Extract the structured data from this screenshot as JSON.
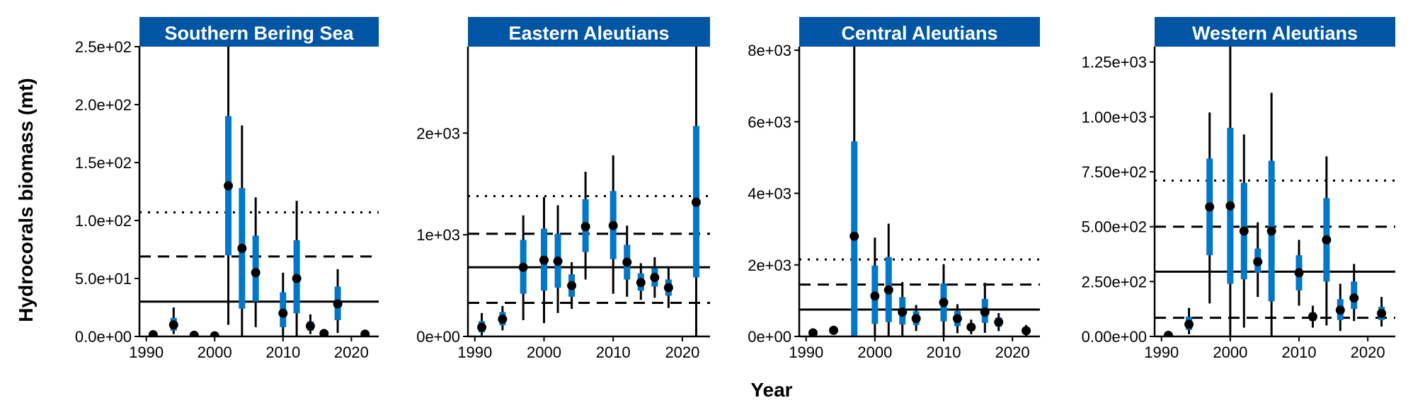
{
  "figure": {
    "ylabel": "Hydrocorals biomass (mt)",
    "xlabel": "Year"
  },
  "colors": {
    "strip": "#0055A4",
    "inner_interval": "#0077C8",
    "outer_interval": "#000000",
    "point": "#000000"
  },
  "chart_data": [
    {
      "type": "scatter",
      "title": "Southern Bering Sea",
      "xlim": [
        1989,
        2024
      ],
      "ylim": [
        0,
        250
      ],
      "xticks": [
        1990,
        2000,
        2010,
        2020
      ],
      "yticks": [
        0,
        50,
        100,
        150,
        200,
        250
      ],
      "yticklabels": [
        "0.0e+00",
        "5.0e+01",
        "1.0e+02",
        "1.5e+02",
        "2.0e+02",
        "2.5e+02"
      ],
      "reference_lines": {
        "solid": 30,
        "dashed": 69,
        "dotted": 107
      },
      "points": [
        {
          "x": 1991,
          "y": 1.5,
          "lo_inner": 1.5,
          "hi_inner": 1.5,
          "lo_outer": 1.5,
          "hi_outer": 1.5
        },
        {
          "x": 1994,
          "y": 10,
          "lo_inner": 5,
          "hi_inner": 16,
          "lo_outer": 2,
          "hi_outer": 25
        },
        {
          "x": 1997,
          "y": 1,
          "lo_inner": 1,
          "hi_inner": 1,
          "lo_outer": 1,
          "hi_outer": 1
        },
        {
          "x": 2000,
          "y": 0.5,
          "lo_inner": 0.5,
          "hi_inner": 0.5,
          "lo_outer": 0.5,
          "hi_outer": 0.5
        },
        {
          "x": 2002,
          "y": 130,
          "lo_inner": 70,
          "hi_inner": 190,
          "lo_outer": 10,
          "hi_outer": 250
        },
        {
          "x": 2004,
          "y": 76,
          "lo_inner": 24,
          "hi_inner": 128,
          "lo_outer": 0,
          "hi_outer": 182
        },
        {
          "x": 2006,
          "y": 55,
          "lo_inner": 30,
          "hi_inner": 87,
          "lo_outer": 8,
          "hi_outer": 120
        },
        {
          "x": 2010,
          "y": 20,
          "lo_inner": 8,
          "hi_inner": 38,
          "lo_outer": 0,
          "hi_outer": 55
        },
        {
          "x": 2012,
          "y": 50,
          "lo_inner": 20,
          "hi_inner": 83,
          "lo_outer": 0,
          "hi_outer": 117
        },
        {
          "x": 2014,
          "y": 9,
          "lo_inner": 5,
          "hi_inner": 13,
          "lo_outer": 2,
          "hi_outer": 19
        },
        {
          "x": 2016,
          "y": 2.5,
          "lo_inner": 1,
          "hi_inner": 4,
          "lo_outer": 0,
          "hi_outer": 5
        },
        {
          "x": 2018,
          "y": 28,
          "lo_inner": 14,
          "hi_inner": 43,
          "lo_outer": 3,
          "hi_outer": 58
        },
        {
          "x": 2022,
          "y": 2,
          "lo_inner": 2,
          "hi_inner": 2,
          "lo_outer": 2,
          "hi_outer": 2
        }
      ]
    },
    {
      "type": "scatter",
      "title": "Eastern Aleutians",
      "xlim": [
        1989,
        2024
      ],
      "ylim": [
        0,
        2850
      ],
      "xticks": [
        1990,
        2000,
        2010,
        2020
      ],
      "yticks": [
        0,
        1000,
        2000
      ],
      "yticklabels": [
        "0e+00",
        "1e+03",
        "2e+03"
      ],
      "reference_lines": {
        "solid": 680,
        "dashed": 1010,
        "dotted": 1380,
        "dashed_low": 330
      },
      "points": [
        {
          "x": 1991,
          "y": 90,
          "lo_inner": 40,
          "hi_inner": 150,
          "lo_outer": 10,
          "hi_outer": 230
        },
        {
          "x": 1994,
          "y": 170,
          "lo_inner": 110,
          "hi_inner": 240,
          "lo_outer": 60,
          "hi_outer": 300
        },
        {
          "x": 1997,
          "y": 680,
          "lo_inner": 420,
          "hi_inner": 950,
          "lo_outer": 160,
          "hi_outer": 1190
        },
        {
          "x": 2000,
          "y": 750,
          "lo_inner": 450,
          "hi_inner": 1060,
          "lo_outer": 130,
          "hi_outer": 1370
        },
        {
          "x": 2002,
          "y": 740,
          "lo_inner": 480,
          "hi_inner": 1010,
          "lo_outer": 230,
          "hi_outer": 1290
        },
        {
          "x": 2004,
          "y": 500,
          "lo_inner": 390,
          "hi_inner": 610,
          "lo_outer": 270,
          "hi_outer": 730
        },
        {
          "x": 2006,
          "y": 1080,
          "lo_inner": 830,
          "hi_inner": 1350,
          "lo_outer": 560,
          "hi_outer": 1620
        },
        {
          "x": 2010,
          "y": 1090,
          "lo_inner": 760,
          "hi_inner": 1430,
          "lo_outer": 420,
          "hi_outer": 1780
        },
        {
          "x": 2012,
          "y": 730,
          "lo_inner": 560,
          "hi_inner": 900,
          "lo_outer": 390,
          "hi_outer": 1090
        },
        {
          "x": 2014,
          "y": 530,
          "lo_inner": 450,
          "hi_inner": 620,
          "lo_outer": 360,
          "hi_outer": 720
        },
        {
          "x": 2016,
          "y": 580,
          "lo_inner": 490,
          "hi_inner": 670,
          "lo_outer": 380,
          "hi_outer": 780
        },
        {
          "x": 2018,
          "y": 480,
          "lo_inner": 400,
          "hi_inner": 560,
          "lo_outer": 280,
          "hi_outer": 680
        },
        {
          "x": 2022,
          "y": 1320,
          "lo_inner": 580,
          "hi_inner": 2070,
          "lo_outer": 0,
          "hi_outer": 2850
        }
      ]
    },
    {
      "type": "scatter",
      "title": "Central Aleutians",
      "xlim": [
        1989,
        2024
      ],
      "ylim": [
        0,
        8100
      ],
      "xticks": [
        1990,
        2000,
        2010,
        2020
      ],
      "yticks": [
        0,
        2000,
        4000,
        6000,
        8000
      ],
      "yticklabels": [
        "0e+00",
        "2e+03",
        "4e+03",
        "6e+03",
        "8e+03"
      ],
      "reference_lines": {
        "solid": 750,
        "dashed": 1450,
        "dotted": 2150
      },
      "points": [
        {
          "x": 1991,
          "y": 100,
          "lo_inner": 60,
          "hi_inner": 140,
          "lo_outer": 30,
          "hi_outer": 180
        },
        {
          "x": 1994,
          "y": 170,
          "lo_inner": 120,
          "hi_inner": 220,
          "lo_outer": 80,
          "hi_outer": 270
        },
        {
          "x": 1997,
          "y": 2800,
          "lo_inner": 0,
          "hi_inner": 5450,
          "lo_outer": 0,
          "hi_outer": 8100
        },
        {
          "x": 2000,
          "y": 1130,
          "lo_inner": 350,
          "hi_inner": 1980,
          "lo_outer": 0,
          "hi_outer": 2760
        },
        {
          "x": 2002,
          "y": 1300,
          "lo_inner": 400,
          "hi_inner": 2220,
          "lo_outer": 0,
          "hi_outer": 3150
        },
        {
          "x": 2004,
          "y": 680,
          "lo_inner": 330,
          "hi_inner": 1100,
          "lo_outer": 0,
          "hi_outer": 1520
        },
        {
          "x": 2006,
          "y": 500,
          "lo_inner": 320,
          "hi_inner": 700,
          "lo_outer": 150,
          "hi_outer": 880
        },
        {
          "x": 2010,
          "y": 950,
          "lo_inner": 420,
          "hi_inner": 1480,
          "lo_outer": 0,
          "hi_outer": 2020
        },
        {
          "x": 2012,
          "y": 500,
          "lo_inner": 290,
          "hi_inner": 710,
          "lo_outer": 90,
          "hi_outer": 900
        },
        {
          "x": 2014,
          "y": 260,
          "lo_inner": 160,
          "hi_inner": 360,
          "lo_outer": 60,
          "hi_outer": 470
        },
        {
          "x": 2016,
          "y": 680,
          "lo_inner": 380,
          "hi_inner": 1050,
          "lo_outer": 100,
          "hi_outer": 1500
        },
        {
          "x": 2018,
          "y": 400,
          "lo_inner": 270,
          "hi_inner": 530,
          "lo_outer": 150,
          "hi_outer": 650
        },
        {
          "x": 2022,
          "y": 160,
          "lo_inner": 90,
          "hi_inner": 240,
          "lo_outer": 20,
          "hi_outer": 320
        }
      ]
    },
    {
      "type": "scatter",
      "title": "Western Aleutians",
      "xlim": [
        1989,
        2024
      ],
      "ylim": [
        0,
        1320
      ],
      "xticks": [
        1990,
        2000,
        2010,
        2020
      ],
      "yticks": [
        0,
        250,
        500,
        750,
        1000,
        1250
      ],
      "yticklabels": [
        "0.00e+00",
        "2.50e+02",
        "5.00e+02",
        "7.50e+02",
        "1.00e+03",
        "1.25e+03"
      ],
      "reference_lines": {
        "solid": 295,
        "dashed": 500,
        "dotted": 710,
        "dashed_low": 85
      },
      "points": [
        {
          "x": 1991,
          "y": 5,
          "lo_inner": 5,
          "hi_inner": 5,
          "lo_outer": 5,
          "hi_outer": 5
        },
        {
          "x": 1994,
          "y": 55,
          "lo_inner": 30,
          "hi_inner": 90,
          "lo_outer": 10,
          "hi_outer": 130
        },
        {
          "x": 1997,
          "y": 590,
          "lo_inner": 370,
          "hi_inner": 810,
          "lo_outer": 150,
          "hi_outer": 1020
        },
        {
          "x": 2000,
          "y": 595,
          "lo_inner": 240,
          "hi_inner": 950,
          "lo_outer": 0,
          "hi_outer": 1320
        },
        {
          "x": 2002,
          "y": 480,
          "lo_inner": 260,
          "hi_inner": 700,
          "lo_outer": 40,
          "hi_outer": 920
        },
        {
          "x": 2004,
          "y": 340,
          "lo_inner": 290,
          "hi_inner": 400,
          "lo_outer": 180,
          "hi_outer": 520
        },
        {
          "x": 2006,
          "y": 480,
          "lo_inner": 160,
          "hi_inner": 800,
          "lo_outer": 0,
          "hi_outer": 1110
        },
        {
          "x": 2010,
          "y": 290,
          "lo_inner": 210,
          "hi_inner": 370,
          "lo_outer": 140,
          "hi_outer": 440
        },
        {
          "x": 2012,
          "y": 90,
          "lo_inner": 70,
          "hi_inner": 110,
          "lo_outer": 40,
          "hi_outer": 140
        },
        {
          "x": 2014,
          "y": 440,
          "lo_inner": 250,
          "hi_inner": 630,
          "lo_outer": 50,
          "hi_outer": 820
        },
        {
          "x": 2016,
          "y": 120,
          "lo_inner": 75,
          "hi_inner": 170,
          "lo_outer": 25,
          "hi_outer": 240
        },
        {
          "x": 2018,
          "y": 175,
          "lo_inner": 125,
          "hi_inner": 250,
          "lo_outer": 70,
          "hi_outer": 330
        },
        {
          "x": 2022,
          "y": 105,
          "lo_inner": 75,
          "hi_inner": 135,
          "lo_outer": 45,
          "hi_outer": 180
        }
      ]
    }
  ]
}
